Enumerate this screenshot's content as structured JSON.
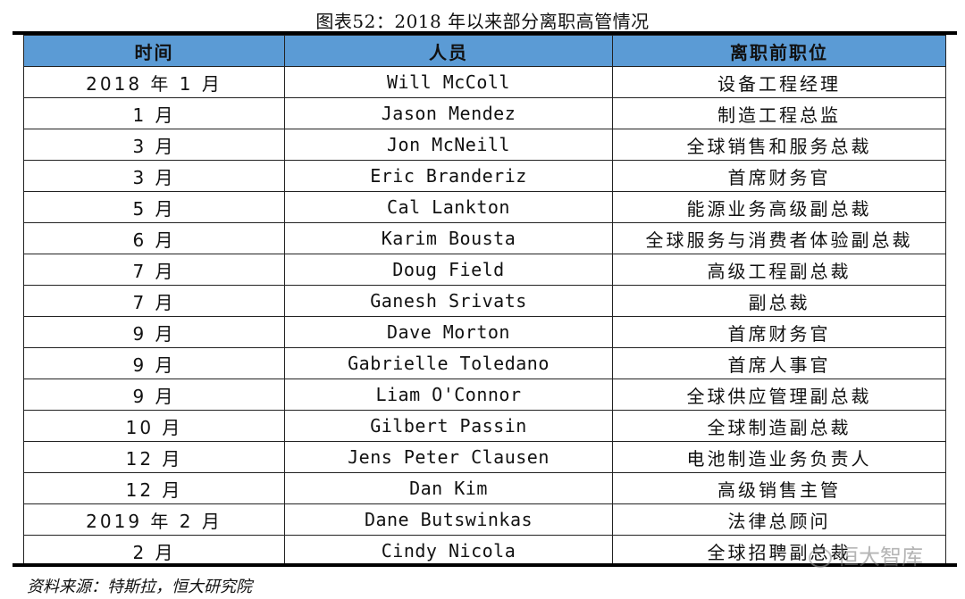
{
  "title": "图表52：2018 年以来部分离职高管情况",
  "headers": [
    "时间",
    "人员",
    "离职前职位"
  ],
  "rows": [
    [
      "2018 年 1 月",
      "Will McColl",
      "设备工程经理"
    ],
    [
      "1 月",
      "Jason Mendez",
      "制造工程总监"
    ],
    [
      "3 月",
      "Jon McNeill",
      "全球销售和服务总裁"
    ],
    [
      "3 月",
      "Eric Branderiz",
      "首席财务官"
    ],
    [
      "5 月",
      "Cal Lankton",
      "能源业务高级副总裁"
    ],
    [
      "6 月",
      "Karim Bousta",
      "全球服务与消费者体验副总裁"
    ],
    [
      "7 月",
      "Doug Field",
      "高级工程副总裁"
    ],
    [
      "7 月",
      "Ganesh Srivats",
      "副总裁"
    ],
    [
      "9 月",
      "Dave Morton",
      "首席财务官"
    ],
    [
      "9 月",
      "Gabrielle Toledano",
      "首席人事官"
    ],
    [
      "9 月",
      "Liam O'Connor",
      "全球供应管理副总裁"
    ],
    [
      "10 月",
      "Gilbert Passin",
      "全球制造副总裁"
    ],
    [
      "12 月",
      "Jens Peter Clausen",
      "电池制造业务负责人"
    ],
    [
      "12 月",
      "Dan Kim",
      "高级销售主管"
    ],
    [
      "2019 年 2 月",
      "Dane Butswinkas",
      "法律总顾问"
    ],
    [
      "2 月",
      "Cindy Nicola",
      "全球招聘副总裁"
    ]
  ],
  "source": "资料来源：特斯拉，恒大研究院",
  "watermark": "恒大智库",
  "colors": {
    "header_bg": "#5b9bd5"
  }
}
